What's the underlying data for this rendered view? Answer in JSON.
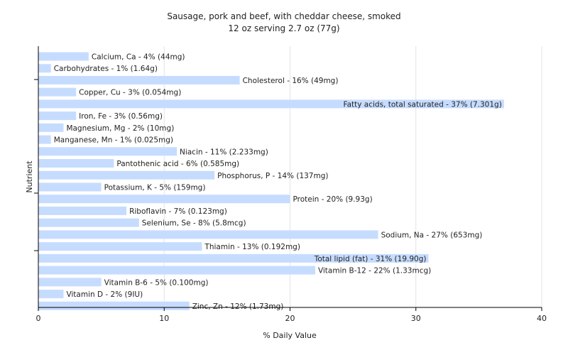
{
  "chart_data": {
    "type": "bar",
    "orientation": "horizontal",
    "title": "Sausage, pork and beef, with cheddar cheese, smoked",
    "subtitle": "12 oz serving 2.7 oz (77g)",
    "xlabel": "% Daily Value",
    "ylabel": "Nutrient",
    "xlim": [
      0,
      40
    ],
    "xticks": [
      0,
      10,
      20,
      30,
      40
    ],
    "grid": true,
    "bar_color": "#c6dcff",
    "categories": [
      "Calcium, Ca",
      "Carbohydrates",
      "Cholesterol",
      "Copper, Cu",
      "Fatty acids, total saturated",
      "Iron, Fe",
      "Magnesium, Mg",
      "Manganese, Mn",
      "Niacin",
      "Pantothenic acid",
      "Phosphorus, P",
      "Potassium, K",
      "Protein",
      "Riboflavin",
      "Selenium, Se",
      "Sodium, Na",
      "Thiamin",
      "Total lipid (fat)",
      "Vitamin B-12",
      "Vitamin B-6",
      "Vitamin D",
      "Zinc, Zn"
    ],
    "values": [
      4,
      1,
      16,
      3,
      37,
      3,
      2,
      1,
      11,
      6,
      14,
      5,
      20,
      7,
      8,
      27,
      13,
      31,
      22,
      5,
      2,
      12
    ],
    "labels": [
      "Calcium, Ca - 4% (44mg)",
      "Carbohydrates - 1% (1.64g)",
      "Cholesterol - 16% (49mg)",
      "Copper, Cu - 3% (0.054mg)",
      "Fatty acids, total saturated - 37% (7.301g)",
      "Iron, Fe - 3% (0.56mg)",
      "Magnesium, Mg - 2% (10mg)",
      "Manganese, Mn - 1% (0.025mg)",
      "Niacin - 11% (2.233mg)",
      "Pantothenic acid - 6% (0.585mg)",
      "Phosphorus, P - 14% (137mg)",
      "Potassium, K - 5% (159mg)",
      "Protein - 20% (9.93g)",
      "Riboflavin - 7% (0.123mg)",
      "Selenium, Se - 8% (5.8mcg)",
      "Sodium, Na - 27% (653mg)",
      "Thiamin - 13% (0.192mg)",
      "Total lipid (fat) - 31% (19.90g)",
      "Vitamin B-12 - 22% (1.33mcg)",
      "Vitamin B-6 - 5% (0.100mg)",
      "Vitamin D - 2% (9IU)",
      "Zinc, Zn - 12% (1.73mg)"
    ]
  }
}
